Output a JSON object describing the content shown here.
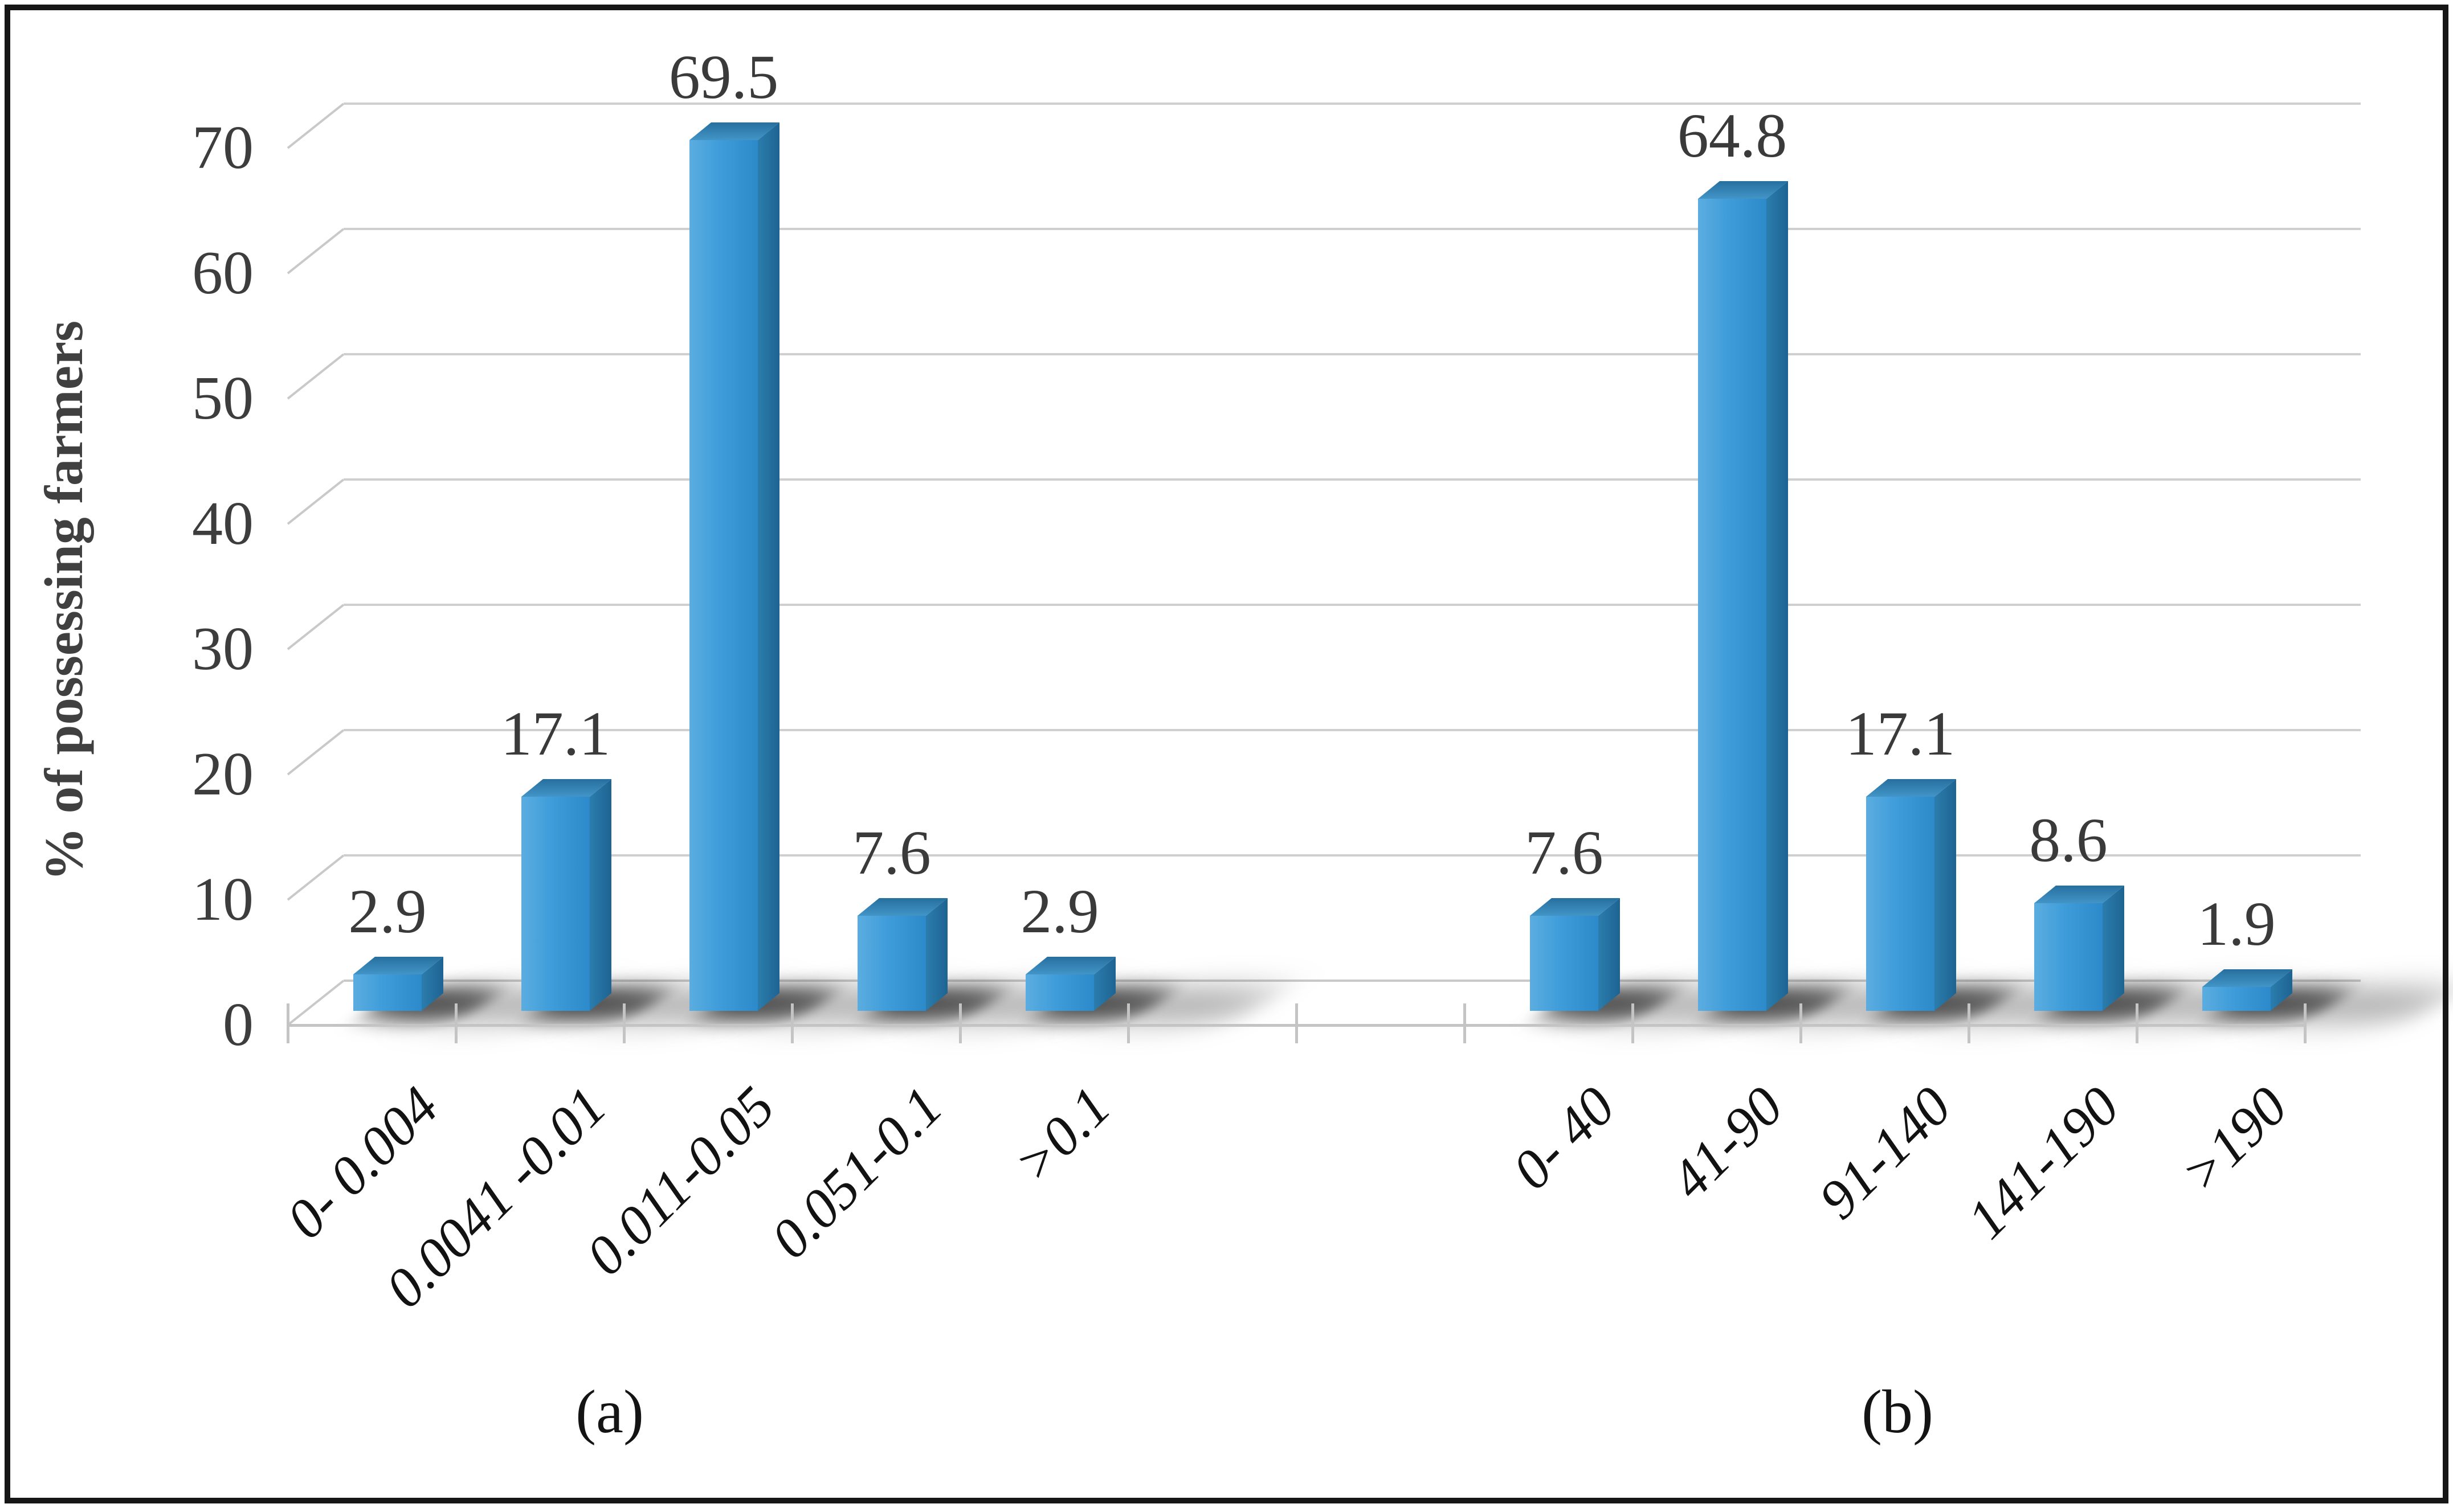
{
  "figure": {
    "border_color": "#161616",
    "background": "#ffffff"
  },
  "chart_data": {
    "type": "bar",
    "style": "3d-column",
    "title": "",
    "xlabel": "",
    "ylabel": "% of possessing farmers",
    "ylim": [
      0,
      70
    ],
    "y_ticks": [
      0,
      10,
      20,
      30,
      40,
      50,
      60,
      70
    ],
    "grid": true,
    "legend": false,
    "data_labels": true,
    "bar_color": "#3e9cd9",
    "bar_side_color": "#1e6392",
    "gridline_color": "#cfcfcf",
    "axis_color": "#c4c4c4",
    "label_color": "#3d3d3d",
    "panels": [
      {
        "label": "(a)",
        "categories": [
          "0- 0.004",
          "0.0041 -0.01",
          "0.011-0.05",
          "0.051-0.1",
          ">0.1"
        ],
        "values": [
          2.9,
          17.1,
          69.5,
          7.6,
          2.9
        ]
      },
      {
        "label": "(b)",
        "categories": [
          "0- 40",
          "41-90",
          "91-140",
          "141-190",
          ">190"
        ],
        "values": [
          7.6,
          64.8,
          17.1,
          8.6,
          1.9
        ]
      }
    ]
  }
}
